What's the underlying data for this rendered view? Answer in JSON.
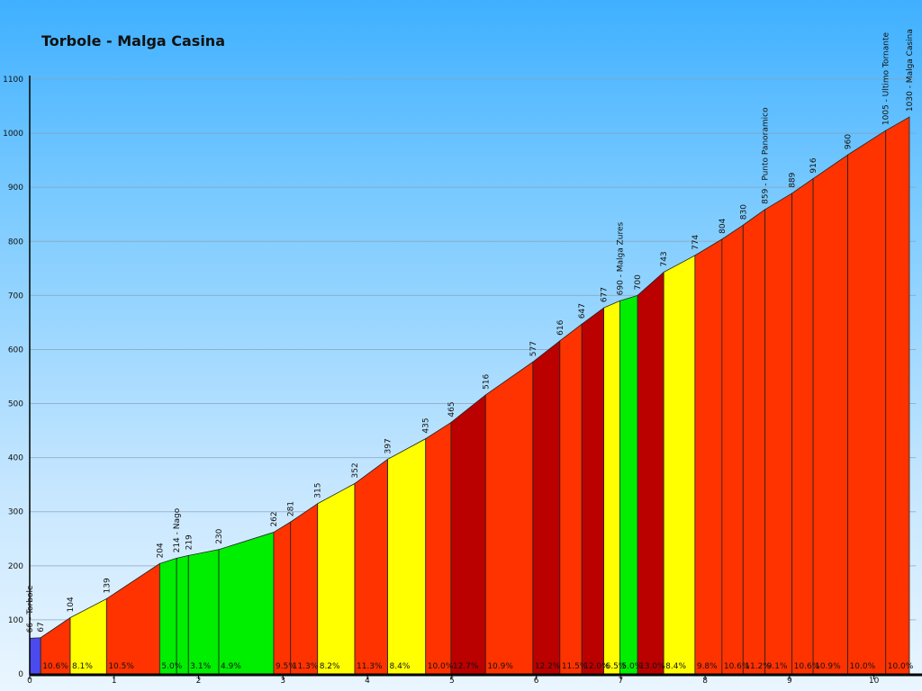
{
  "chart_data": {
    "type": "area",
    "title": "Torbole - Malga Casina",
    "xlabel": "",
    "ylabel": "",
    "xlim": [
      0,
      10.5
    ],
    "ylim": [
      0,
      1100
    ],
    "grid": true,
    "y_ticks": [
      0,
      100,
      200,
      300,
      400,
      500,
      600,
      700,
      800,
      900,
      1000,
      1100
    ],
    "x_ticks": [
      0,
      1,
      2,
      3,
      4,
      5,
      6,
      7,
      8,
      9,
      10
    ],
    "points": [
      {
        "x": 0.0,
        "y": 66,
        "label": "66 - Torbole"
      },
      {
        "x": 0.13,
        "y": 67,
        "label": "67"
      },
      {
        "x": 0.48,
        "y": 104,
        "label": "104"
      },
      {
        "x": 0.91,
        "y": 139,
        "label": "139"
      },
      {
        "x": 1.54,
        "y": 204,
        "label": "204"
      },
      {
        "x": 1.74,
        "y": 214,
        "label": "214 - Nago"
      },
      {
        "x": 1.88,
        "y": 219,
        "label": "219"
      },
      {
        "x": 2.24,
        "y": 230,
        "label": "230"
      },
      {
        "x": 2.89,
        "y": 262,
        "label": "262"
      },
      {
        "x": 3.09,
        "y": 281,
        "label": "281"
      },
      {
        "x": 3.41,
        "y": 315,
        "label": "315"
      },
      {
        "x": 3.85,
        "y": 352,
        "label": "352"
      },
      {
        "x": 4.24,
        "y": 397,
        "label": "397"
      },
      {
        "x": 4.69,
        "y": 435,
        "label": "435"
      },
      {
        "x": 4.99,
        "y": 465,
        "label": "465"
      },
      {
        "x": 5.4,
        "y": 516,
        "label": "516"
      },
      {
        "x": 5.96,
        "y": 577,
        "label": "577"
      },
      {
        "x": 6.28,
        "y": 616,
        "label": "616"
      },
      {
        "x": 6.54,
        "y": 647,
        "label": "647"
      },
      {
        "x": 6.8,
        "y": 677,
        "label": "677"
      },
      {
        "x": 6.99,
        "y": 690,
        "label": "690 - Malga Zures"
      },
      {
        "x": 7.2,
        "y": 700,
        "label": "700"
      },
      {
        "x": 7.51,
        "y": 743,
        "label": "743"
      },
      {
        "x": 7.88,
        "y": 774,
        "label": "774"
      },
      {
        "x": 8.2,
        "y": 804,
        "label": "804"
      },
      {
        "x": 8.45,
        "y": 830,
        "label": "830"
      },
      {
        "x": 8.71,
        "y": 859,
        "label": "859 - Punto Panoramico"
      },
      {
        "x": 9.03,
        "y": 889,
        "label": "889"
      },
      {
        "x": 9.28,
        "y": 916,
        "label": "916"
      },
      {
        "x": 9.69,
        "y": 960,
        "label": "960"
      },
      {
        "x": 10.14,
        "y": 1005,
        "label": "1005 - Ultimo Tornante"
      },
      {
        "x": 10.42,
        "y": 1030,
        "label": "1030 - Malga Casina"
      }
    ],
    "segments": [
      {
        "grade": "",
        "color": "#4a4aee"
      },
      {
        "grade": "10.6%",
        "color": "#ff3300"
      },
      {
        "grade": "8.1%",
        "color": "#ffff00"
      },
      {
        "grade": "10.5%",
        "color": "#ff3300"
      },
      {
        "grade": "5.0%",
        "color": "#00ee00"
      },
      {
        "grade": "",
        "color": "#00ee00"
      },
      {
        "grade": "3.1%",
        "color": "#00ee00"
      },
      {
        "grade": "4.9%",
        "color": "#00ee00"
      },
      {
        "grade": "9.5%",
        "color": "#ff3300"
      },
      {
        "grade": "11.3%",
        "color": "#ff3300"
      },
      {
        "grade": "8.2%",
        "color": "#ffff00"
      },
      {
        "grade": "11.3%",
        "color": "#ff3300"
      },
      {
        "grade": "8.4%",
        "color": "#ffff00"
      },
      {
        "grade": "10.0%",
        "color": "#ff3300"
      },
      {
        "grade": "12.7%",
        "color": "#bb0000"
      },
      {
        "grade": "10.9%",
        "color": "#ff3300"
      },
      {
        "grade": "12.2%",
        "color": "#bb0000"
      },
      {
        "grade": "11.5%",
        "color": "#ff3300"
      },
      {
        "grade": "12.0%",
        "color": "#bb0000"
      },
      {
        "grade": "6.5%",
        "color": "#ffff00"
      },
      {
        "grade": "5.0%",
        "color": "#00ee00"
      },
      {
        "grade": "13.0%",
        "color": "#bb0000"
      },
      {
        "grade": "8.4%",
        "color": "#ffff00"
      },
      {
        "grade": "9.8%",
        "color": "#ff3300"
      },
      {
        "grade": "10.6%",
        "color": "#ff3300"
      },
      {
        "grade": "11.2%",
        "color": "#ff3300"
      },
      {
        "grade": "9.1%",
        "color": "#ff3300"
      },
      {
        "grade": "10.6%",
        "color": "#ff3300"
      },
      {
        "grade": "10.9%",
        "color": "#ff3300"
      },
      {
        "grade": "10.0%",
        "color": "#ff3300"
      },
      {
        "grade": "10.0%",
        "color": "#ff3300"
      }
    ]
  }
}
